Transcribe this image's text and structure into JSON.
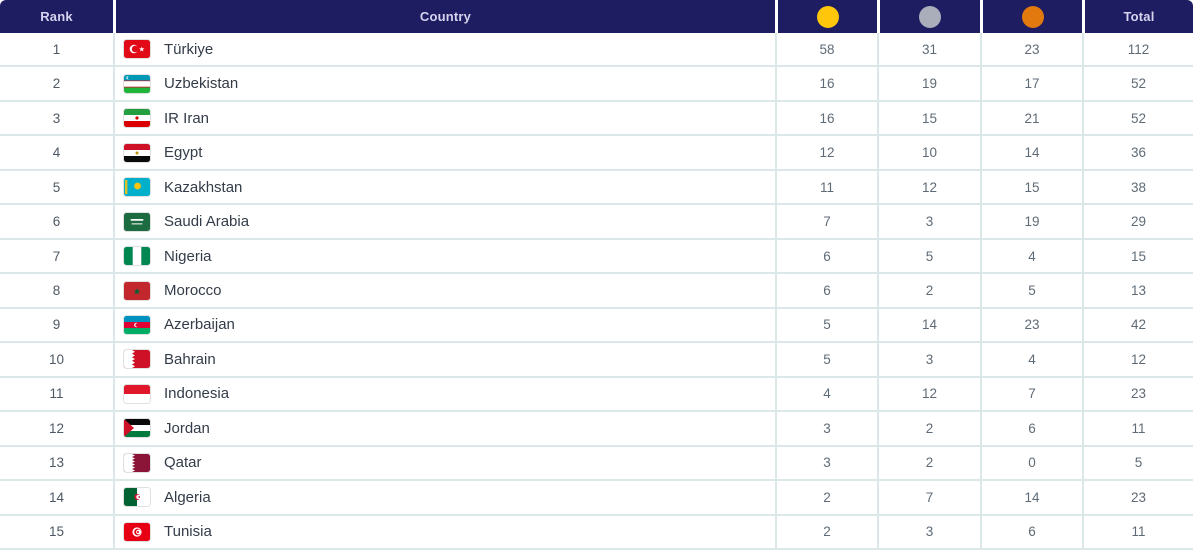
{
  "table": {
    "columns": {
      "rank_label": "Rank",
      "country_label": "Country",
      "gold_icon": "gold-medal",
      "silver_icon": "silver-medal",
      "bronze_icon": "bronze-medal",
      "total_label": "Total"
    },
    "colors": {
      "header_bg": "#1e1d62",
      "header_text": "#d6d3ee",
      "gold": "#ffc60a",
      "silver": "#a9aeba",
      "bronze": "#e2790f",
      "row_border": "#dbe7e9",
      "number_text": "#5f6b76",
      "country_text": "#333c48"
    },
    "rows": [
      {
        "rank": "1",
        "country": "Türkiye",
        "flag": "tr",
        "gold": "58",
        "silver": "31",
        "bronze": "23",
        "total": "112"
      },
      {
        "rank": "2",
        "country": "Uzbekistan",
        "flag": "uz",
        "gold": "16",
        "silver": "19",
        "bronze": "17",
        "total": "52"
      },
      {
        "rank": "3",
        "country": "IR Iran",
        "flag": "ir",
        "gold": "16",
        "silver": "15",
        "bronze": "21",
        "total": "52"
      },
      {
        "rank": "4",
        "country": "Egypt",
        "flag": "eg",
        "gold": "12",
        "silver": "10",
        "bronze": "14",
        "total": "36"
      },
      {
        "rank": "5",
        "country": "Kazakhstan",
        "flag": "kz",
        "gold": "11",
        "silver": "12",
        "bronze": "15",
        "total": "38"
      },
      {
        "rank": "6",
        "country": "Saudi Arabia",
        "flag": "sa",
        "gold": "7",
        "silver": "3",
        "bronze": "19",
        "total": "29"
      },
      {
        "rank": "7",
        "country": "Nigeria",
        "flag": "ng",
        "gold": "6",
        "silver": "5",
        "bronze": "4",
        "total": "15"
      },
      {
        "rank": "8",
        "country": "Morocco",
        "flag": "ma",
        "gold": "6",
        "silver": "2",
        "bronze": "5",
        "total": "13"
      },
      {
        "rank": "9",
        "country": "Azerbaijan",
        "flag": "az",
        "gold": "5",
        "silver": "14",
        "bronze": "23",
        "total": "42"
      },
      {
        "rank": "10",
        "country": "Bahrain",
        "flag": "bh",
        "gold": "5",
        "silver": "3",
        "bronze": "4",
        "total": "12"
      },
      {
        "rank": "11",
        "country": "Indonesia",
        "flag": "id",
        "gold": "4",
        "silver": "12",
        "bronze": "7",
        "total": "23"
      },
      {
        "rank": "12",
        "country": "Jordan",
        "flag": "jo",
        "gold": "3",
        "silver": "2",
        "bronze": "6",
        "total": "11"
      },
      {
        "rank": "13",
        "country": "Qatar",
        "flag": "qa",
        "gold": "3",
        "silver": "2",
        "bronze": "0",
        "total": "5"
      },
      {
        "rank": "14",
        "country": "Algeria",
        "flag": "dz",
        "gold": "2",
        "silver": "7",
        "bronze": "14",
        "total": "23"
      },
      {
        "rank": "15",
        "country": "Tunisia",
        "flag": "tn",
        "gold": "2",
        "silver": "3",
        "bronze": "6",
        "total": "11"
      }
    ]
  }
}
